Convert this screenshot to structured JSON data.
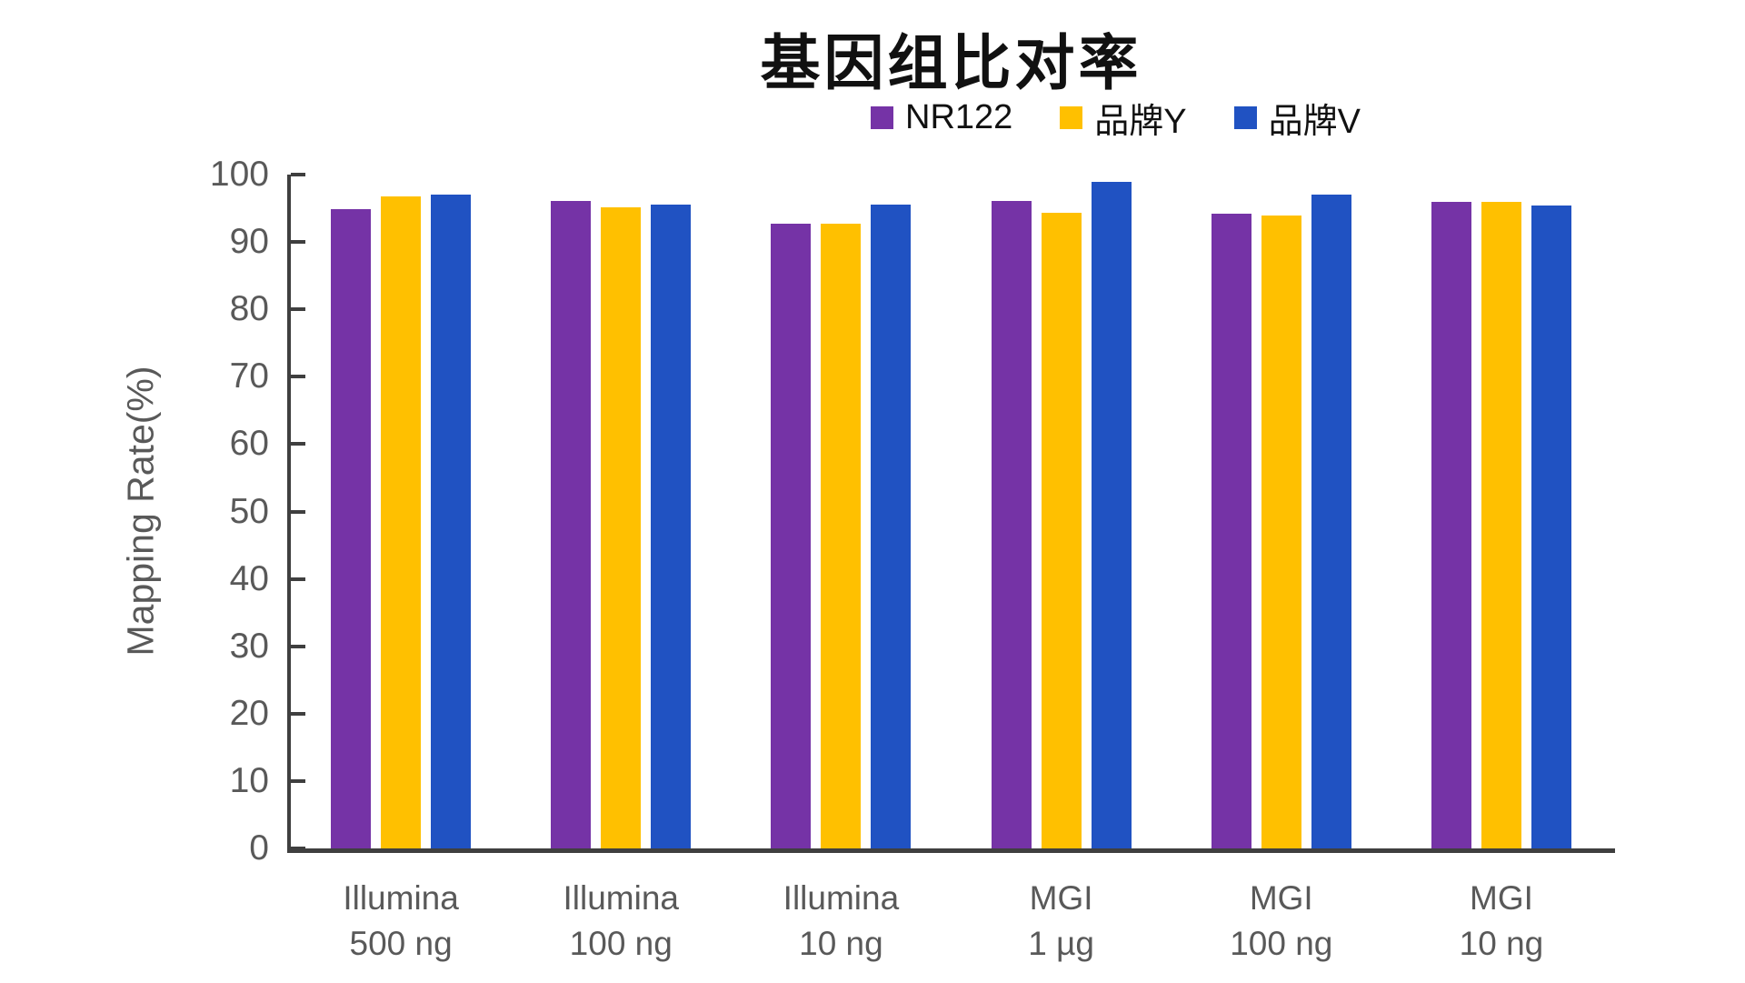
{
  "chart_data": {
    "type": "bar",
    "title": "基因组比对率",
    "ylabel": "Mapping Rate(%)",
    "ylim": [
      0,
      100
    ],
    "ytick_step": 10,
    "yticks": [
      0,
      10,
      20,
      30,
      40,
      50,
      60,
      70,
      80,
      90,
      100
    ],
    "grid": false,
    "legend_position": "top-right",
    "categories": [
      "Illumina\n500 ng",
      "Illumina\n100 ng",
      "Illumina\n10 ng",
      "MGI\n1 µg",
      "MGI\n100 ng",
      "MGI\n10 ng"
    ],
    "series": [
      {
        "name": "NR122",
        "color": "#7533A6",
        "values": [
          94.9,
          96.1,
          92.7,
          96.1,
          94.2,
          95.9
        ]
      },
      {
        "name": "品牌Y",
        "color": "#FFC000",
        "values": [
          96.8,
          95.1,
          92.7,
          94.3,
          93.9,
          95.9
        ]
      },
      {
        "name": "品牌V",
        "color": "#2052C2",
        "values": [
          97.0,
          95.5,
          95.5,
          98.9,
          97.1,
          95.4
        ]
      }
    ],
    "axis_color": "#3F3F3F",
    "tick_label_color": "#595959",
    "title_color": "#111111"
  }
}
